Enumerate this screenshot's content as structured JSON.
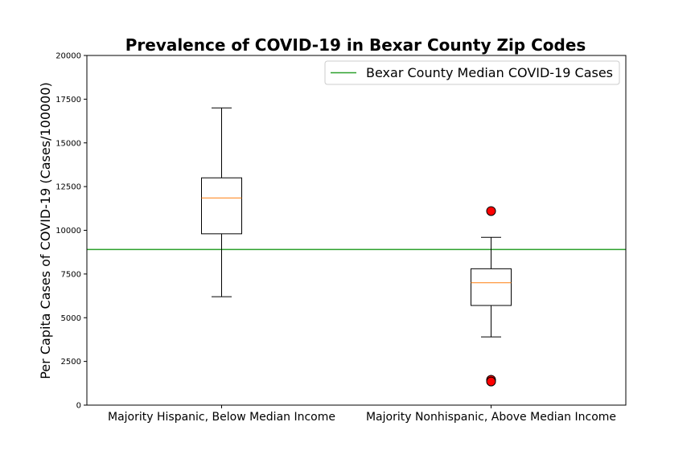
{
  "chart_data": {
    "type": "box",
    "title": "Prevalence of COVID-19 in Bexar County Zip Codes",
    "xlabel": "",
    "ylabel": "Per Capita Cases of COVID-19 (Cases/100000)",
    "ylim": [
      0,
      20000
    ],
    "yticks": [
      0,
      2500,
      5000,
      7500,
      10000,
      12500,
      15000,
      17500,
      20000
    ],
    "ytick_labels": [
      "0",
      "2500",
      "5000",
      "7500",
      "10000",
      "12500",
      "15000",
      "17500",
      "20000"
    ],
    "categories": [
      "Majority Hispanic, Below Median Income",
      "Majority Nonhispanic, Above Median Income"
    ],
    "boxes": [
      {
        "whisker_low": 6200,
        "q1": 9800,
        "median": 11850,
        "q3": 13000,
        "whisker_high": 17000,
        "outliers": []
      },
      {
        "whisker_low": 3900,
        "q1": 5700,
        "median": 7000,
        "q3": 7800,
        "whisker_high": 9600,
        "outliers": [
          11100,
          1450,
          1350
        ]
      }
    ],
    "reference_line": {
      "y": 8900,
      "label": "Bexar County Median COVID-19 Cases",
      "color": "#2ca02c"
    },
    "legend": {
      "position": "upper-right",
      "entries": [
        "Bexar County Median COVID-19 Cases"
      ]
    },
    "grid": false,
    "colors": {
      "median": "#ff7f0e",
      "outlier_fill": "#ff0000",
      "outlier_edge": "#000000",
      "reference": "#2ca02c"
    }
  }
}
